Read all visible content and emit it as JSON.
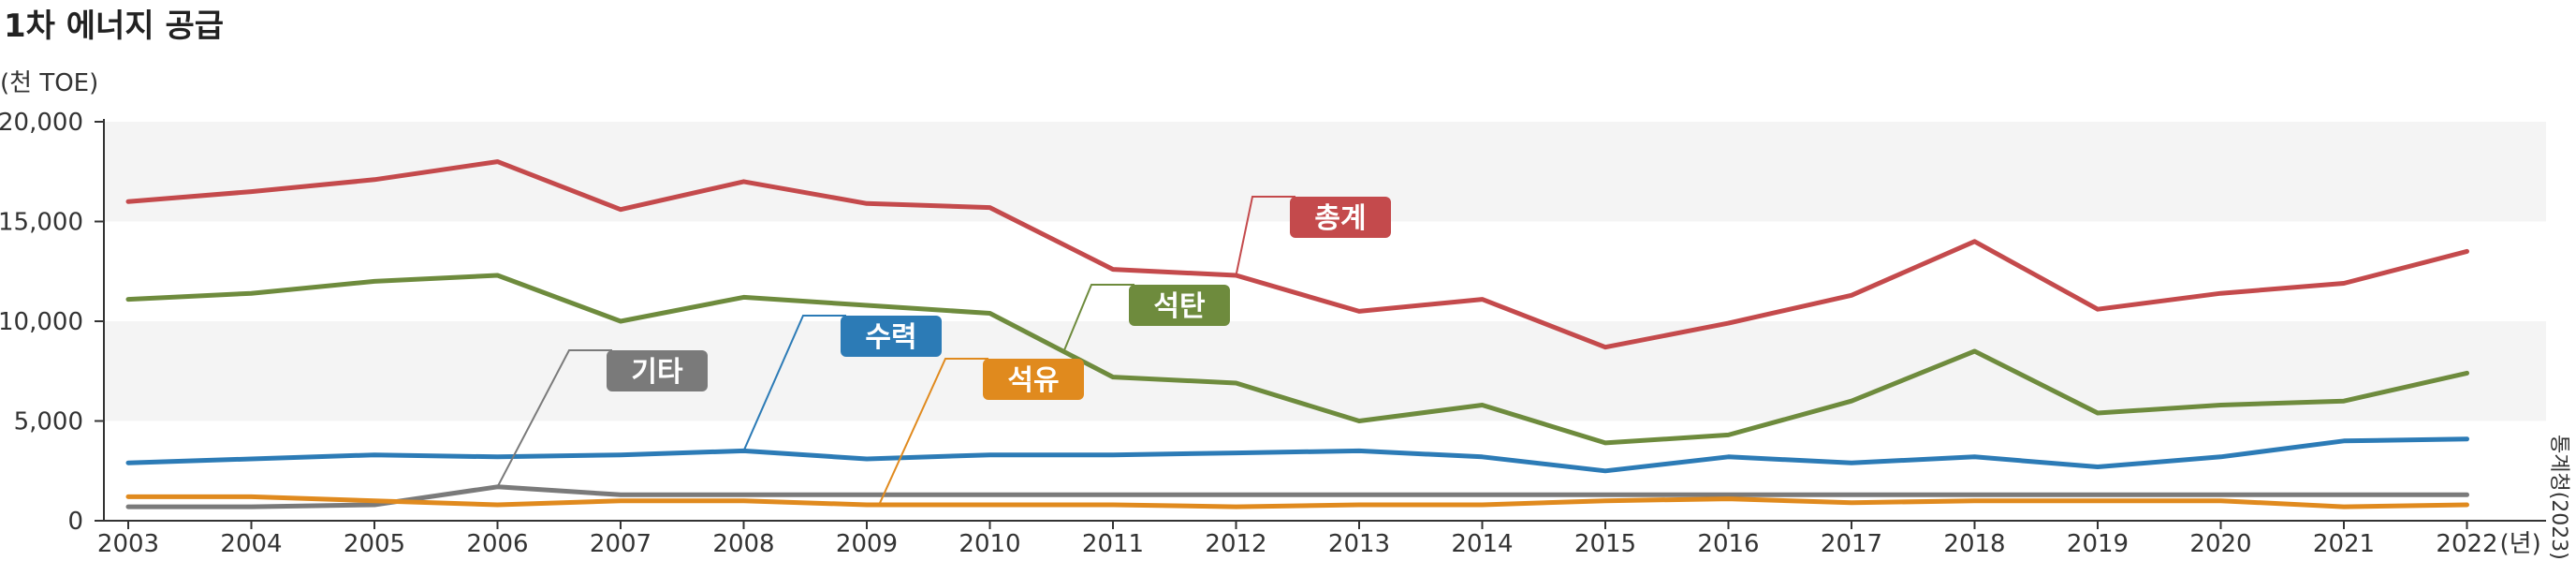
{
  "chart_data": {
    "type": "line",
    "title": "1차 에너지 공급",
    "unit": "(천 TOE)",
    "x_suffix": "(년)",
    "source": "통계청(2023)",
    "ylim": [
      0,
      20000
    ],
    "yticks": [
      "0",
      "5,000",
      "10,000",
      "15,000",
      "20,000"
    ],
    "ytick_values": [
      0,
      5000,
      10000,
      15000,
      20000
    ],
    "bands": [
      [
        5000,
        10000
      ],
      [
        15000,
        20000
      ]
    ],
    "x": [
      "2003",
      "2004",
      "2005",
      "2006",
      "2007",
      "2008",
      "2009",
      "2010",
      "2011",
      "2012",
      "2013",
      "2014",
      "2015",
      "2016",
      "2017",
      "2018",
      "2019",
      "2020",
      "2021",
      "2022"
    ],
    "series": [
      {
        "name": "총계",
        "color": "#c44a4c",
        "values": [
          16000,
          16500,
          17100,
          18000,
          15600,
          17000,
          15900,
          15700,
          12600,
          12300,
          10500,
          11100,
          8700,
          9900,
          11300,
          14000,
          10600,
          11400,
          11900,
          13500
        ]
      },
      {
        "name": "석탄",
        "color": "#6e8b3d",
        "values": [
          11100,
          11400,
          12000,
          12300,
          10000,
          11200,
          10800,
          10400,
          7200,
          6900,
          5000,
          5800,
          3900,
          4300,
          6000,
          8500,
          5400,
          5800,
          6000,
          7400
        ]
      },
      {
        "name": "수력",
        "color": "#2c7bb6",
        "values": [
          2900,
          3100,
          3300,
          3200,
          3300,
          3500,
          3100,
          3300,
          3300,
          3400,
          3500,
          3200,
          2500,
          3200,
          2900,
          3200,
          2700,
          3200,
          4000,
          4100
        ]
      },
      {
        "name": "석유",
        "color": "#e08a1e",
        "values": [
          1200,
          1200,
          1000,
          800,
          1000,
          1000,
          800,
          800,
          800,
          700,
          800,
          800,
          1000,
          1100,
          900,
          1000,
          1000,
          1000,
          700,
          800
        ]
      },
      {
        "name": "기타",
        "color": "#7a7a7a",
        "values": [
          700,
          700,
          800,
          1700,
          1300,
          1300,
          1300,
          1300,
          1300,
          1300,
          1300,
          1300,
          1300,
          1300,
          1300,
          1300,
          1300,
          1300,
          1300,
          1300
        ]
      }
    ]
  }
}
